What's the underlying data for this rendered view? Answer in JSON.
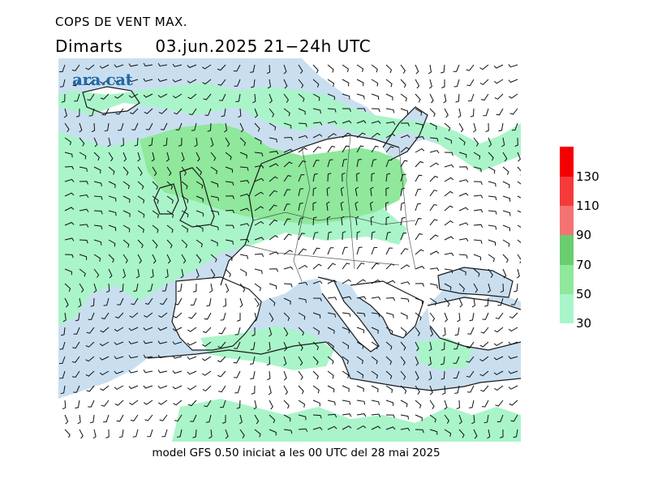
{
  "header": {
    "title": "COPS DE VENT MAX.",
    "day": "Dimarts",
    "date_range": "03.jun.2025 21−24h UTC"
  },
  "logo": {
    "text": "ara.cat"
  },
  "footer": {
    "text": "model GFS 0.50 iniciat a les 00 UTC del 28 mai 2025"
  },
  "legend": {
    "levels": [
      {
        "value": "30",
        "color": "#a9f5c9"
      },
      {
        "value": "50",
        "color": "#8fe89b"
      },
      {
        "value": "70",
        "color": "#6acd6f"
      },
      {
        "value": "90",
        "color": "#f57373"
      },
      {
        "value": "110",
        "color": "#f53a3a"
      },
      {
        "value": "130",
        "color": "#f50000"
      }
    ]
  },
  "colors": {
    "sea": "#c9dff0",
    "land": "#ffffff",
    "coast": "#1a1a1a"
  }
}
